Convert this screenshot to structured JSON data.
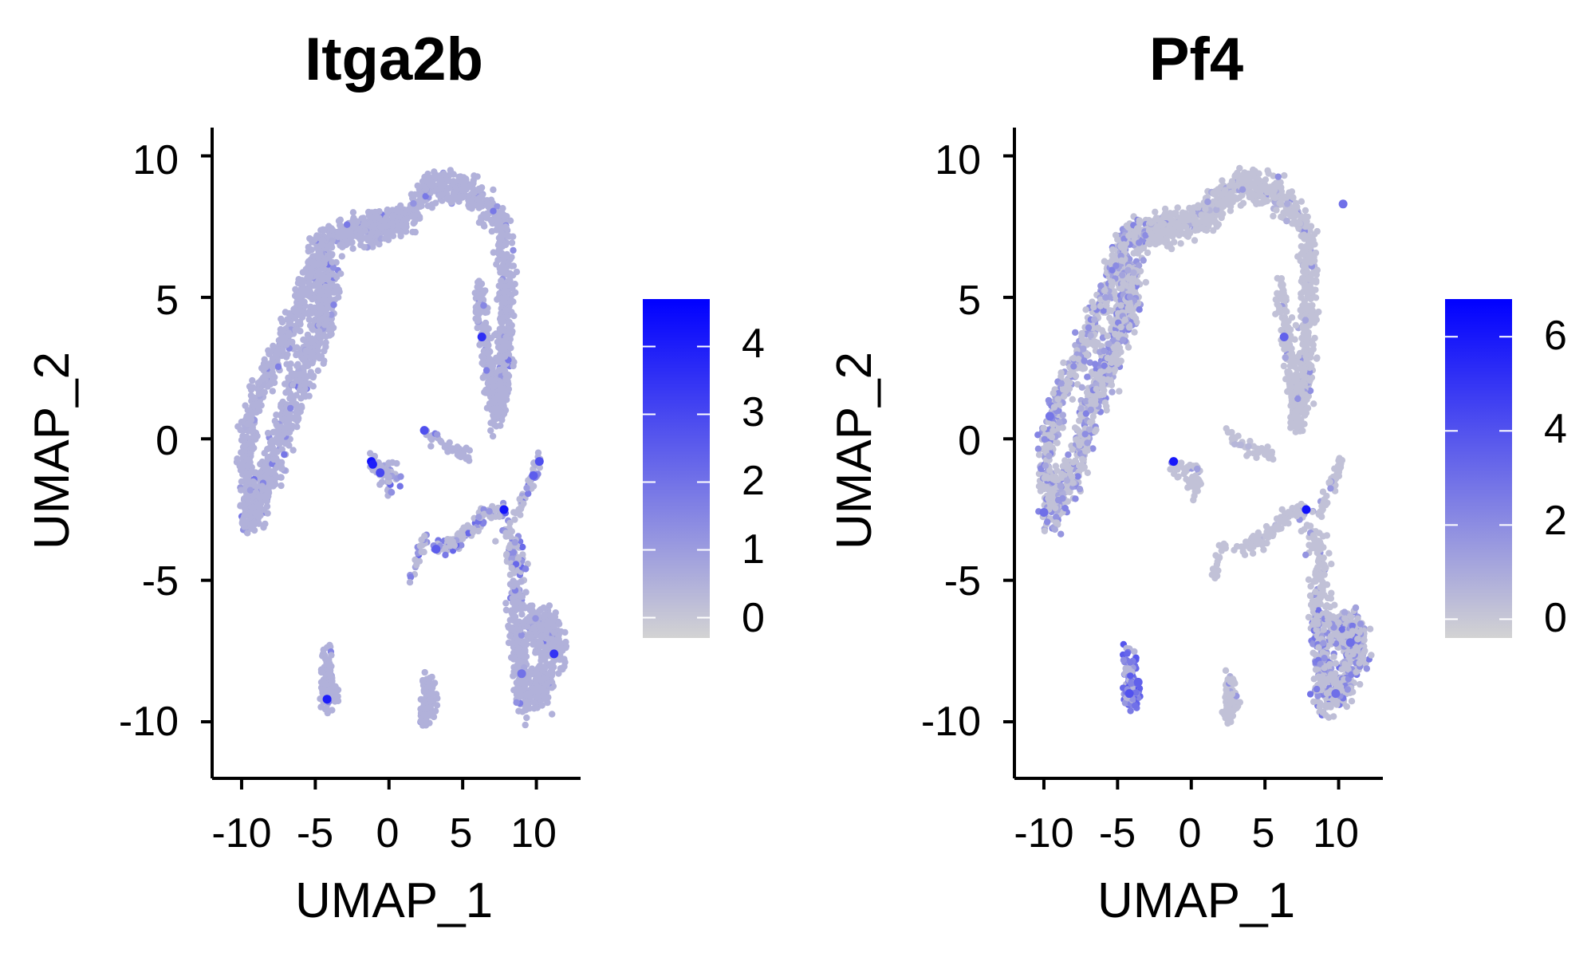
{
  "chart_data": [
    {
      "type": "scatter",
      "title": "Itga2b",
      "xlabel": "UMAP_1",
      "ylabel": "UMAP_2",
      "xlim": [
        -12,
        13
      ],
      "ylim": [
        -12,
        11
      ],
      "xticks": [
        -10,
        -5,
        0,
        5,
        10
      ],
      "yticks": [
        10,
        5,
        0,
        -5,
        -10
      ],
      "xtick_labels": [
        "-10",
        "-5",
        "0",
        "5",
        "10"
      ],
      "ytick_labels": [
        "10",
        "5",
        "0",
        "-5",
        "-10"
      ],
      "grid": false,
      "legend": {
        "placement": "right",
        "type": "colorbar",
        "min": -0.3,
        "max": 4.7,
        "ticks": [
          0,
          1,
          2,
          3,
          4
        ],
        "tick_labels": [
          "0",
          "1",
          "2",
          "3",
          "4"
        ]
      },
      "colors": {
        "low": "#d3d3d3",
        "high": "#0000ff"
      },
      "high_expression_points": [
        {
          "x": -1.2,
          "y": -0.8,
          "value": 4.3
        },
        {
          "x": -1.1,
          "y": -0.9,
          "value": 4.0
        },
        {
          "x": -0.6,
          "y": -1.2,
          "value": 3.0
        },
        {
          "x": 7.8,
          "y": -2.5,
          "value": 4.2
        },
        {
          "x": 10.2,
          "y": -0.8,
          "value": 2.8
        },
        {
          "x": 9.8,
          "y": -1.3,
          "value": 2.5
        },
        {
          "x": -4.2,
          "y": -9.2,
          "value": 4.0
        },
        {
          "x": 11.2,
          "y": -7.6,
          "value": 3.5
        },
        {
          "x": 6.3,
          "y": 3.6,
          "value": 3.6
        },
        {
          "x": 2.4,
          "y": 0.3,
          "value": 2.8
        },
        {
          "x": 3.2,
          "y": -3.9,
          "value": 2.5
        },
        {
          "x": 9.0,
          "y": -8.3,
          "value": 2.0
        }
      ]
    },
    {
      "type": "scatter",
      "title": "Pf4",
      "xlabel": "UMAP_1",
      "ylabel": "UMAP_2",
      "xlim": [
        -12,
        13
      ],
      "ylim": [
        -12,
        11
      ],
      "xticks": [
        -10,
        -5,
        0,
        5,
        10
      ],
      "yticks": [
        10,
        5,
        0,
        -5,
        -10
      ],
      "xtick_labels": [
        "-10",
        "-5",
        "0",
        "5",
        "10"
      ],
      "ytick_labels": [
        "10",
        "5",
        "0",
        "-5",
        "-10"
      ],
      "grid": false,
      "legend": {
        "placement": "right",
        "type": "colorbar",
        "min": -0.4,
        "max": 6.8,
        "ticks": [
          0,
          2,
          4,
          6
        ],
        "tick_labels": [
          "0",
          "2",
          "4",
          "6"
        ]
      },
      "colors": {
        "low": "#d3d3d3",
        "high": "#0000ff"
      },
      "high_expression_points": [
        {
          "x": -1.2,
          "y": -0.8,
          "value": 6.0
        },
        {
          "x": 7.8,
          "y": -2.5,
          "value": 6.3
        },
        {
          "x": -4.2,
          "y": -9.0,
          "value": 4.0
        },
        {
          "x": -3.6,
          "y": -8.6,
          "value": 3.5
        },
        {
          "x": 9.8,
          "y": -9.0,
          "value": 3.0
        },
        {
          "x": 10.8,
          "y": -7.2,
          "value": 3.0
        },
        {
          "x": 6.3,
          "y": 3.6,
          "value": 3.5
        },
        {
          "x": 10.3,
          "y": 8.3,
          "value": 3.0
        },
        {
          "x": -10.0,
          "y": -2.6,
          "value": 3.0
        },
        {
          "x": -9.6,
          "y": 0.8,
          "value": 2.8
        }
      ]
    }
  ]
}
